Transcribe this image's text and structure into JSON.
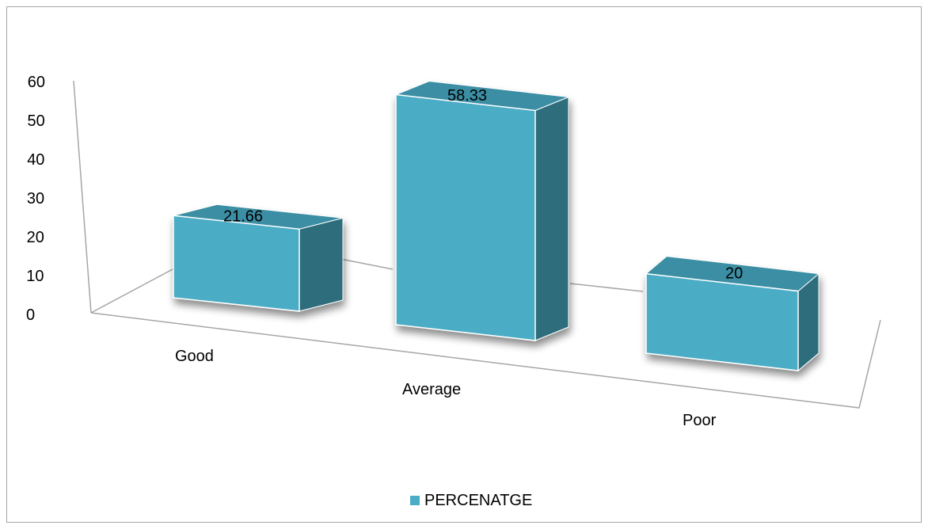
{
  "chart_data": {
    "type": "bar",
    "style": "3d-column",
    "categories": [
      "Good",
      "Average",
      "Poor"
    ],
    "series": [
      {
        "name": "PERCENATGE",
        "values": [
          21.66,
          58.33,
          20
        ]
      }
    ],
    "data_labels": [
      "21.66",
      "58.33",
      "20"
    ],
    "y_ticks": [
      "0",
      "10",
      "20",
      "30",
      "40",
      "50",
      "60"
    ],
    "ylim": [
      0,
      60
    ],
    "grid": false,
    "legend_position": "bottom",
    "colors": {
      "front": "#4bacc6",
      "top": "#3b8ea3",
      "side": "#2f6d7c",
      "axis": "#a6a6a6"
    }
  }
}
